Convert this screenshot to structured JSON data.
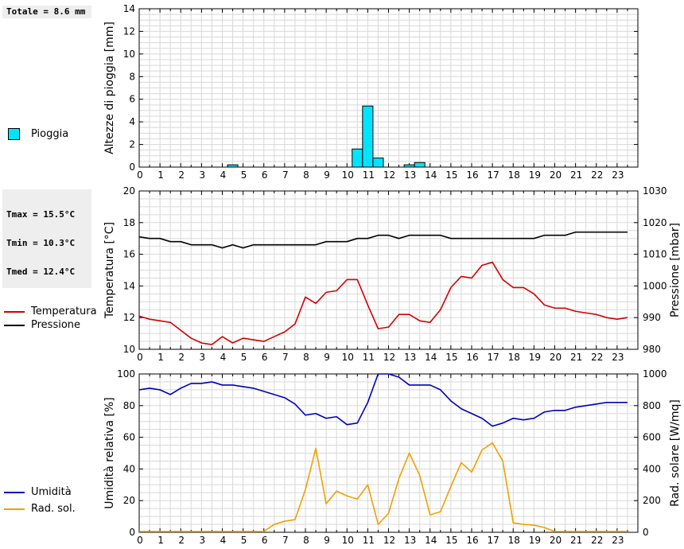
{
  "stats": {
    "rain_total": "Totale = 8.6 mm",
    "tmax": "Tmax = 15.5°C",
    "tmin": "Tmin = 10.3°C",
    "tmed": "Tmed = 12.4°C"
  },
  "legend": {
    "rain": "Pioggia",
    "temperature": "Temperatura",
    "pressure": "Pressione",
    "humidity": "Umidità",
    "solar": "Rad. sol."
  },
  "colors": {
    "rain": "#00e5ff",
    "temperature": "#d40000",
    "pressure": "#000000",
    "humidity": "#0000c0",
    "solar": "#f0a000"
  },
  "chart_data": [
    {
      "type": "bar",
      "ylabel": "Altezze di pioggia [mm]",
      "ylim": [
        0,
        14
      ],
      "yticks": [
        0,
        2,
        4,
        6,
        8,
        10,
        12,
        14
      ],
      "xlim": [
        0,
        24
      ],
      "xticks": [
        "0",
        "1",
        "2",
        "3",
        "4",
        "5",
        "6",
        "7",
        "8",
        "9",
        "10",
        "11",
        "12",
        "13",
        "14",
        "15",
        "16",
        "17",
        "18",
        "19",
        "20",
        "21",
        "22",
        "23"
      ],
      "grid": true,
      "series": [
        {
          "name": "Pioggia",
          "bars": [
            {
              "x": 4.5,
              "value": 0.2
            },
            {
              "x": 10.5,
              "value": 1.6
            },
            {
              "x": 11.0,
              "value": 5.4
            },
            {
              "x": 11.5,
              "value": 0.8
            },
            {
              "x": 13.0,
              "value": 0.2
            },
            {
              "x": 13.5,
              "value": 0.4
            }
          ]
        }
      ]
    },
    {
      "type": "line",
      "ylabel": "Temperatura [°C]",
      "ylim": [
        10,
        20
      ],
      "yticks": [
        10,
        12,
        14,
        16,
        18,
        20
      ],
      "y2label": "Pressione [mbar]",
      "y2lim": [
        980,
        1030
      ],
      "y2ticks": [
        980,
        990,
        1000,
        1010,
        1020,
        1030
      ],
      "xlim": [
        0,
        24
      ],
      "xticks": [
        "0",
        "1",
        "2",
        "3",
        "4",
        "5",
        "6",
        "7",
        "8",
        "9",
        "10",
        "11",
        "12",
        "13",
        "14",
        "15",
        "16",
        "17",
        "18",
        "19",
        "20",
        "21",
        "22",
        "23"
      ],
      "grid": true,
      "series": [
        {
          "name": "Temperatura",
          "axis": "left",
          "x": [
            0,
            0.5,
            1,
            1.5,
            2,
            2.5,
            3,
            3.5,
            4,
            4.5,
            5,
            5.5,
            6,
            6.5,
            7,
            7.5,
            8,
            8.5,
            9,
            9.5,
            10,
            10.5,
            11,
            11.5,
            12,
            12.5,
            13,
            13.5,
            14,
            14.5,
            15,
            15.5,
            16,
            16.5,
            17,
            17.5,
            18,
            18.5,
            19,
            19.5,
            20,
            20.5,
            21,
            21.5,
            22,
            22.5,
            23,
            23.5
          ],
          "y": [
            12.1,
            11.9,
            11.8,
            11.7,
            11.2,
            10.7,
            10.4,
            10.3,
            10.8,
            10.4,
            10.7,
            10.6,
            10.5,
            10.8,
            11.1,
            11.6,
            13.3,
            12.9,
            13.6,
            13.7,
            14.4,
            14.4,
            12.8,
            11.3,
            11.4,
            12.2,
            12.2,
            11.8,
            11.7,
            12.5,
            13.9,
            14.6,
            14.5,
            15.3,
            15.5,
            14.4,
            13.9,
            13.9,
            13.5,
            12.8,
            12.6,
            12.6,
            12.4,
            12.3,
            12.2,
            12.0,
            11.9,
            12.0
          ]
        },
        {
          "name": "Pressione",
          "axis": "right",
          "x": [
            0,
            0.5,
            1,
            1.5,
            2,
            2.5,
            3,
            3.5,
            4,
            4.5,
            5,
            5.5,
            6,
            6.5,
            7,
            7.5,
            8,
            8.5,
            9,
            9.5,
            10,
            10.5,
            11,
            11.5,
            12,
            12.5,
            13,
            13.5,
            14,
            14.5,
            15,
            15.5,
            16,
            16.5,
            17,
            17.5,
            18,
            18.5,
            19,
            19.5,
            20,
            20.5,
            21,
            21.5,
            22,
            22.5,
            23,
            23.5
          ],
          "y": [
            1015.5,
            1015,
            1015,
            1014,
            1014,
            1013,
            1013,
            1013,
            1012,
            1013,
            1012,
            1013,
            1013,
            1013,
            1013,
            1013,
            1013,
            1013,
            1014,
            1014,
            1014,
            1015,
            1015,
            1016,
            1016,
            1015,
            1016,
            1016,
            1016,
            1016,
            1015,
            1015,
            1015,
            1015,
            1015,
            1015,
            1015,
            1015,
            1015,
            1016,
            1016,
            1016,
            1017,
            1017,
            1017,
            1017,
            1017,
            1017
          ]
        }
      ]
    },
    {
      "type": "line",
      "ylabel": "Umidità relativa [%]",
      "ylim": [
        0,
        100
      ],
      "yticks": [
        0,
        20,
        40,
        60,
        80,
        100
      ],
      "y2label": "Rad. solare [W/mq]",
      "y2lim": [
        0,
        1000
      ],
      "y2ticks": [
        0,
        200,
        400,
        600,
        800,
        1000
      ],
      "xlim": [
        0,
        24
      ],
      "xticks": [
        "0",
        "1",
        "2",
        "3",
        "4",
        "5",
        "6",
        "7",
        "8",
        "9",
        "10",
        "11",
        "12",
        "13",
        "14",
        "15",
        "16",
        "17",
        "18",
        "19",
        "20",
        "21",
        "22",
        "23"
      ],
      "grid": true,
      "series": [
        {
          "name": "Umidità",
          "axis": "left",
          "x": [
            0,
            0.5,
            1,
            1.5,
            2,
            2.5,
            3,
            3.5,
            4,
            4.5,
            5,
            5.5,
            6,
            6.5,
            7,
            7.5,
            8,
            8.5,
            9,
            9.5,
            10,
            10.5,
            11,
            11.5,
            12,
            12.5,
            13,
            13.5,
            14,
            14.5,
            15,
            15.5,
            16,
            16.5,
            17,
            17.5,
            18,
            18.5,
            19,
            19.5,
            20,
            20.5,
            21,
            21.5,
            22,
            22.5,
            23,
            23.5
          ],
          "y": [
            90,
            91,
            90,
            87,
            91,
            94,
            94,
            95,
            93,
            93,
            92,
            91,
            89,
            87,
            85,
            81,
            74,
            75,
            72,
            73,
            68,
            69,
            82,
            100,
            100,
            98,
            93,
            93,
            93,
            90,
            83,
            78,
            75,
            72,
            67,
            69,
            72,
            71,
            72,
            76,
            77,
            77,
            79,
            80,
            81,
            82,
            82,
            82
          ]
        },
        {
          "name": "Rad. sol.",
          "axis": "right",
          "x": [
            0,
            0.5,
            1,
            1.5,
            2,
            2.5,
            3,
            3.5,
            4,
            4.5,
            5,
            5.5,
            6,
            6.5,
            7,
            7.5,
            8,
            8.5,
            9,
            9.5,
            10,
            10.5,
            11,
            11.5,
            12,
            12.5,
            13,
            13.5,
            14,
            14.5,
            15,
            15.5,
            16,
            16.5,
            17,
            17.5,
            18,
            18.5,
            19,
            19.5,
            20,
            20.5,
            21,
            21.5,
            22,
            22.5,
            23,
            23.5
          ],
          "y": [
            5,
            5,
            5,
            5,
            5,
            5,
            5,
            5,
            5,
            5,
            5,
            5,
            5,
            50,
            70,
            80,
            270,
            530,
            180,
            260,
            230,
            210,
            300,
            50,
            120,
            340,
            500,
            360,
            110,
            130,
            290,
            440,
            380,
            520,
            565,
            450,
            60,
            50,
            45,
            30,
            5,
            5,
            5,
            5,
            5,
            5,
            5,
            5
          ]
        }
      ]
    }
  ]
}
